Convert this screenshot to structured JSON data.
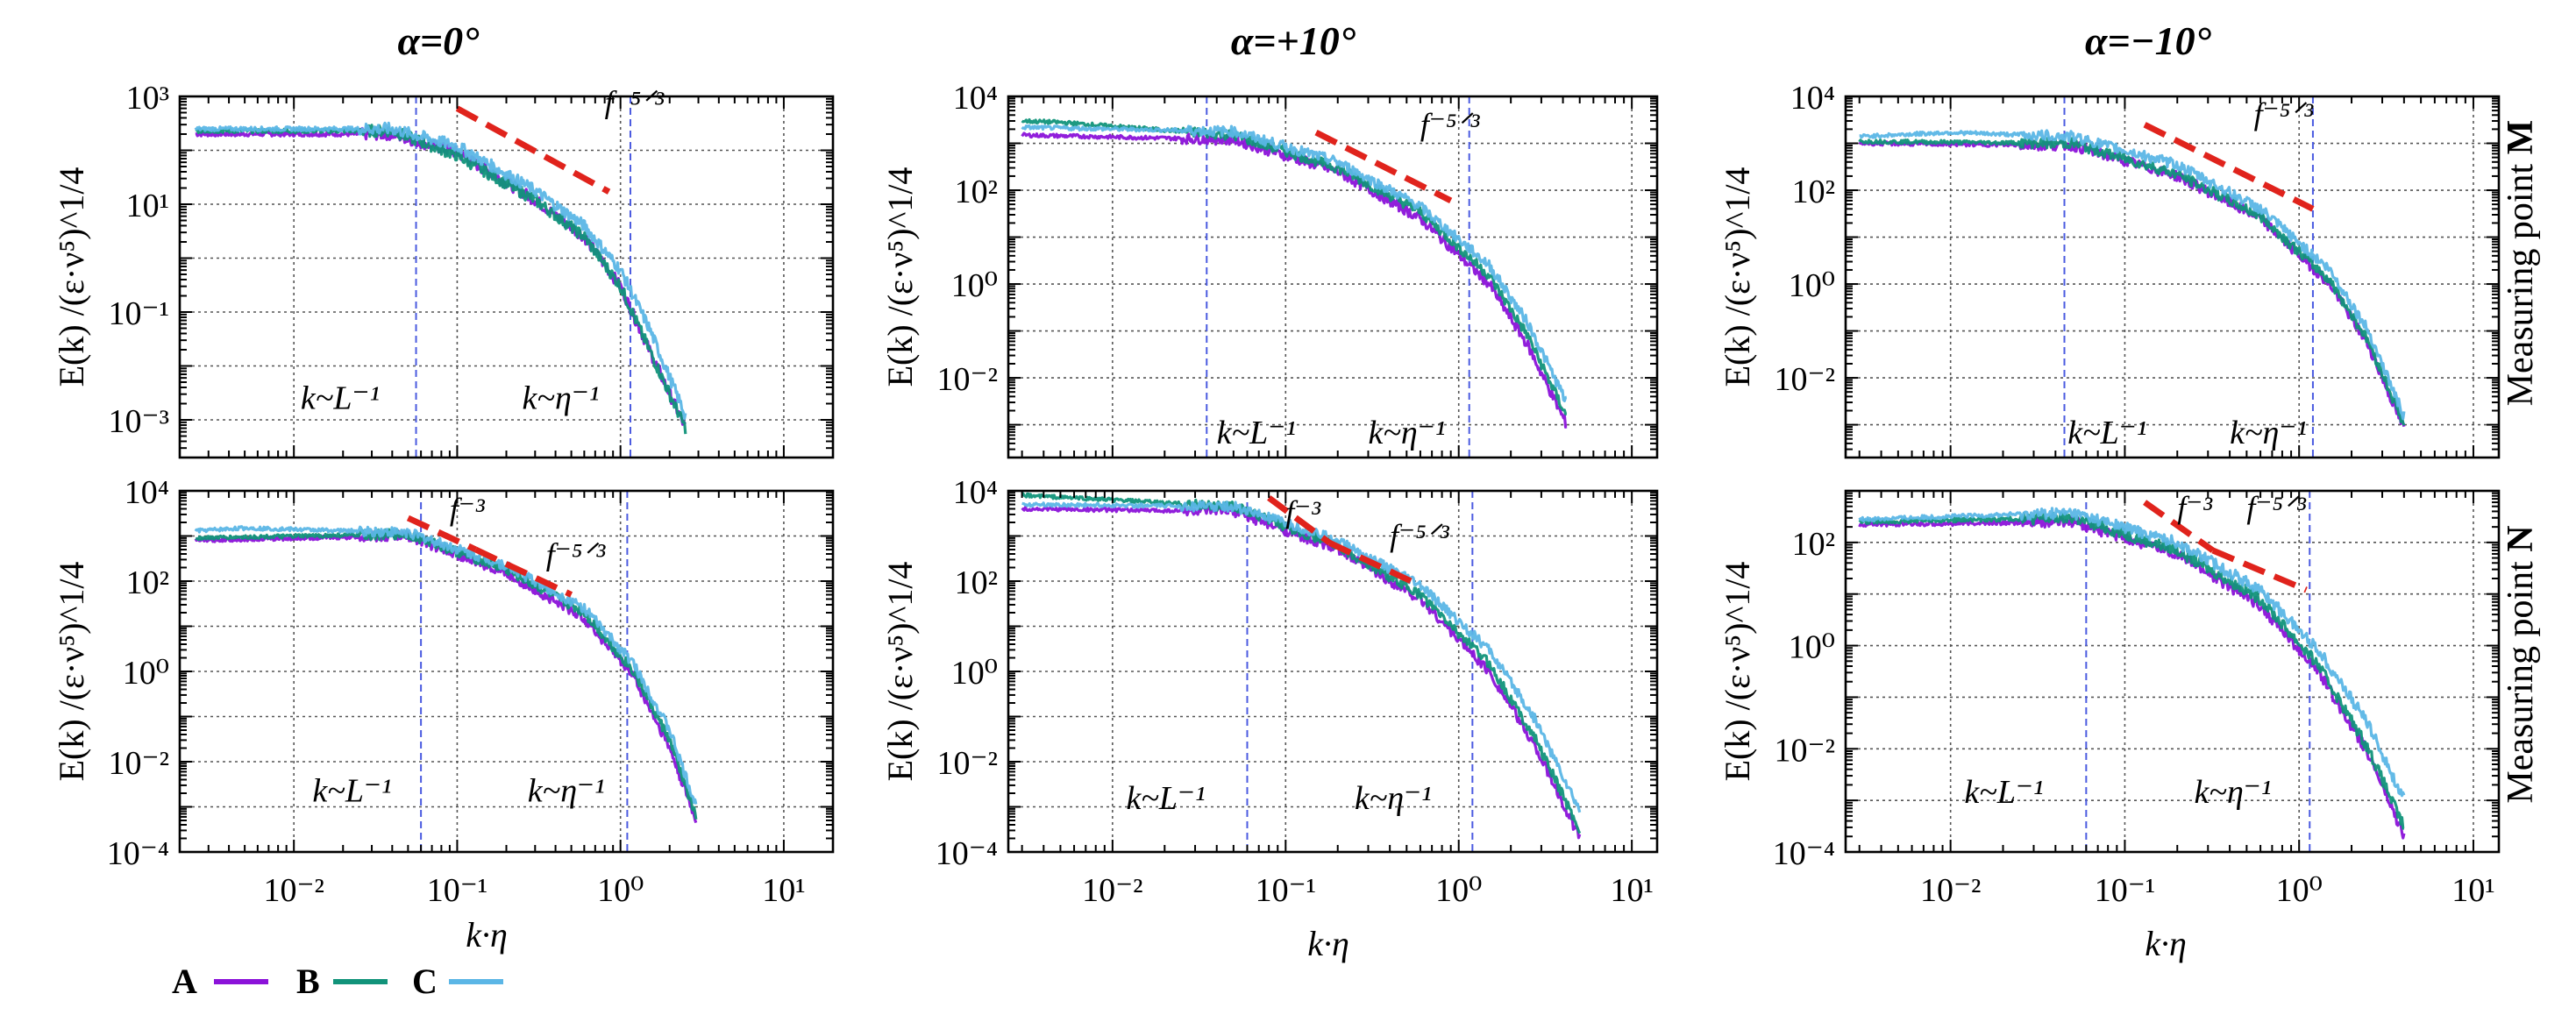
{
  "figure": {
    "column_titles": [
      "α=0°",
      "α=+10°",
      "α=−10°"
    ],
    "row_labels": [
      {
        "prefix": "Measuring point ",
        "bold": "M"
      },
      {
        "prefix": "Measuring point ",
        "bold": "N"
      }
    ],
    "ylabel": "E(k) /(ε·ν⁵)^1/4",
    "xlabel": "k·η",
    "legend": [
      {
        "key": "A",
        "label": "A",
        "color": "#8B12D9"
      },
      {
        "key": "B",
        "label": "B",
        "color": "#11937A"
      },
      {
        "key": "C",
        "label": "C",
        "color": "#5BB6E6"
      }
    ],
    "scale_lines": {
      "kL": "k~L⁻¹",
      "keta": "k~η⁻¹"
    },
    "slope_labels": {
      "s53": "f⁻⁵ᐟ³",
      "s3": "f⁻³"
    }
  },
  "chart_data": [
    {
      "id": "M0",
      "type": "line",
      "title": "α=0°",
      "row": "Measuring point M",
      "xlabel": "",
      "ylabel": "E(k) /(ε·ν⁵)^1/4",
      "xscale": "log",
      "yscale": "log",
      "xlim": [
        0.002,
        20
      ],
      "ylim": [
        0.0002,
        1000
      ],
      "xticks": [
        {
          "v": 0.01,
          "label": ""
        },
        {
          "v": 0.1,
          "label": ""
        },
        {
          "v": 1,
          "label": ""
        },
        {
          "v": 10,
          "label": ""
        }
      ],
      "yticks": [
        {
          "v": 0.001,
          "label": "10⁻³"
        },
        {
          "v": 0.1,
          "label": "10⁻¹"
        },
        {
          "v": 10,
          "label": "10¹"
        },
        {
          "v": 1000,
          "label": "10³"
        }
      ],
      "grid": true,
      "vlines": [
        {
          "x": 0.056,
          "label": "k~L⁻¹",
          "label_x": 0.011,
          "label_y": 0.0016
        },
        {
          "x": 1.15,
          "label": "k~η⁻¹",
          "label_x": 0.25,
          "label_y": 0.0016
        }
      ],
      "ref_lines": [
        {
          "name": "f⁻⁵ᐟ³",
          "x": [
            0.1,
            0.85
          ],
          "y": [
            600,
            17
          ],
          "label_x": 0.8,
          "label_y": 500
        }
      ],
      "series": [
        {
          "name": "A",
          "color": "#8B12D9",
          "x": [
            0.0025,
            0.04,
            0.1,
            0.3,
            0.6,
            1.0,
            1.5,
            2.5
          ],
          "y": [
            200,
            200,
            90,
            12,
            2.5,
            0.3,
            0.02,
            0.0007
          ]
        },
        {
          "name": "B",
          "color": "#11937A",
          "x": [
            0.0025,
            0.04,
            0.1,
            0.3,
            0.6,
            1.0,
            1.5,
            2.5
          ],
          "y": [
            230,
            230,
            80,
            12,
            2.5,
            0.3,
            0.02,
            0.0007
          ]
        },
        {
          "name": "C",
          "color": "#5BB6E6",
          "x": [
            0.0025,
            0.04,
            0.1,
            0.3,
            0.6,
            1.0,
            1.5,
            2.5
          ],
          "y": [
            250,
            250,
            120,
            18,
            4,
            0.6,
            0.05,
            0.0012
          ]
        }
      ]
    },
    {
      "id": "M10",
      "type": "line",
      "title": "α=+10°",
      "row": "Measuring point M",
      "xlabel": "",
      "ylabel": "E(k) /(ε·ν⁵)^1/4",
      "xscale": "log",
      "yscale": "log",
      "xlim": [
        0.0025,
        14
      ],
      "ylim": [
        0.0002,
        10000
      ],
      "xticks": [
        {
          "v": 0.01,
          "label": ""
        },
        {
          "v": 0.1,
          "label": ""
        },
        {
          "v": 1,
          "label": ""
        },
        {
          "v": 10,
          "label": ""
        }
      ],
      "yticks": [
        {
          "v": 0.01,
          "label": "10⁻²"
        },
        {
          "v": 1,
          "label": "10⁰"
        },
        {
          "v": 100,
          "label": "10²"
        },
        {
          "v": 10000,
          "label": "10⁴"
        }
      ],
      "grid": true,
      "vlines": [
        {
          "x": 0.035,
          "label": "k~L⁻¹",
          "label_x": 0.04,
          "label_y": 0.0004
        },
        {
          "x": 1.15,
          "label": "k~η⁻¹",
          "label_x": 0.3,
          "label_y": 0.0004
        }
      ],
      "ref_lines": [
        {
          "name": "f⁻⁵ᐟ³",
          "x": [
            0.15,
            0.9
          ],
          "y": [
            1700,
            60
          ],
          "label_x": 0.6,
          "label_y": 1500
        }
      ],
      "series": [
        {
          "name": "A",
          "color": "#8B12D9",
          "x": [
            0.003,
            0.05,
            0.2,
            0.6,
            1.5,
            2.5,
            4.2
          ],
          "y": [
            1500,
            1200,
            250,
            25,
            1,
            0.05,
            0.001
          ]
        },
        {
          "name": "B",
          "color": "#11937A",
          "x": [
            0.003,
            0.005,
            0.05,
            0.2,
            0.6,
            1.5,
            2.5,
            4.2
          ],
          "y": [
            3000,
            2800,
            1500,
            300,
            35,
            1.5,
            0.08,
            0.0015
          ]
        },
        {
          "name": "C",
          "color": "#5BB6E6",
          "x": [
            0.003,
            0.05,
            0.2,
            0.6,
            1.5,
            2.5,
            4.2
          ],
          "y": [
            2200,
            1800,
            400,
            45,
            2.5,
            0.15,
            0.003
          ]
        }
      ]
    },
    {
      "id": "Mm10",
      "type": "line",
      "title": "α=−10°",
      "row": "Measuring point M",
      "xlabel": "",
      "ylabel": "E(k) /(ε·ν⁵)^1/4",
      "xscale": "log",
      "yscale": "log",
      "xlim": [
        0.0025,
        14
      ],
      "ylim": [
        0.0002,
        10000
      ],
      "xticks": [
        {
          "v": 0.01,
          "label": ""
        },
        {
          "v": 0.1,
          "label": ""
        },
        {
          "v": 1,
          "label": ""
        },
        {
          "v": 10,
          "label": ""
        }
      ],
      "yticks": [
        {
          "v": 0.01,
          "label": "10⁻²"
        },
        {
          "v": 1,
          "label": "10⁰"
        },
        {
          "v": 100,
          "label": "10²"
        },
        {
          "v": 10000,
          "label": "10⁴"
        }
      ],
      "grid": true,
      "vlines": [
        {
          "x": 0.045,
          "label": "k~L⁻¹",
          "label_x": 0.047,
          "label_y": 0.0004
        },
        {
          "x": 1.2,
          "label": "k~η⁻¹",
          "label_x": 0.4,
          "label_y": 0.0004
        }
      ],
      "ref_lines": [
        {
          "name": "f⁻⁵ᐟ³",
          "x": [
            0.13,
            1.2
          ],
          "y": [
            2500,
            40
          ],
          "label_x": 0.55,
          "label_y": 2500
        }
      ],
      "series": [
        {
          "name": "A",
          "color": "#8B12D9",
          "x": [
            0.003,
            0.05,
            0.2,
            0.6,
            1.5,
            2.5,
            4.0
          ],
          "y": [
            1000,
            900,
            200,
            25,
            1,
            0.05,
            0.0008
          ]
        },
        {
          "name": "B",
          "color": "#11937A",
          "x": [
            0.003,
            0.05,
            0.2,
            0.6,
            1.5,
            2.5,
            4.0
          ],
          "y": [
            1100,
            1000,
            220,
            28,
            1.2,
            0.06,
            0.001
          ]
        },
        {
          "name": "C",
          "color": "#5BB6E6",
          "x": [
            0.003,
            0.01,
            0.05,
            0.2,
            0.6,
            1.5,
            2.5,
            4.0
          ],
          "y": [
            1400,
            1700,
            1400,
            350,
            40,
            2,
            0.1,
            0.0015
          ]
        }
      ]
    },
    {
      "id": "N0",
      "type": "line",
      "title": "α=0°",
      "row": "Measuring point N",
      "xlabel": "k·η",
      "ylabel": "E(k) /(ε·ν⁵)^1/4",
      "xscale": "log",
      "yscale": "log",
      "xlim": [
        0.002,
        20
      ],
      "ylim": [
        0.0001,
        10000
      ],
      "xticks": [
        {
          "v": 0.01,
          "label": "10⁻²"
        },
        {
          "v": 0.1,
          "label": "10⁻¹"
        },
        {
          "v": 1,
          "label": "10⁰"
        },
        {
          "v": 10,
          "label": "10¹"
        }
      ],
      "yticks": [
        {
          "v": 0.0001,
          "label": "10⁻⁴"
        },
        {
          "v": 0.01,
          "label": "10⁻²"
        },
        {
          "v": 1,
          "label": "10⁰"
        },
        {
          "v": 100,
          "label": "10²"
        },
        {
          "v": 10000,
          "label": "10⁴"
        }
      ],
      "grid": true,
      "vlines": [
        {
          "x": 0.06,
          "label": "k~L⁻¹",
          "label_x": 0.013,
          "label_y": 0.0013
        },
        {
          "x": 1.1,
          "label": "k~η⁻¹",
          "label_x": 0.27,
          "label_y": 0.0013
        }
      ],
      "ref_lines": [
        {
          "name": "f⁻³",
          "x": [
            0.05,
            0.13
          ],
          "y": [
            2500,
            500
          ],
          "label_x": 0.09,
          "label_y": 2300
        },
        {
          "name": "f⁻⁵ᐟ³",
          "x": [
            0.13,
            0.5
          ],
          "y": [
            500,
            50
          ],
          "label_x": 0.35,
          "label_y": 230
        }
      ],
      "series": [
        {
          "name": "A",
          "color": "#8B12D9",
          "x": [
            0.0025,
            0.05,
            0.2,
            0.6,
            1.2,
            2.0,
            2.9
          ],
          "y": [
            800,
            1000,
            150,
            15,
            0.8,
            0.02,
            0.0005
          ]
        },
        {
          "name": "B",
          "color": "#11937A",
          "x": [
            0.0025,
            0.05,
            0.2,
            0.6,
            1.2,
            2.0,
            2.9
          ],
          "y": [
            900,
            1100,
            180,
            20,
            1,
            0.03,
            0.0006
          ]
        },
        {
          "name": "C",
          "color": "#5BB6E6",
          "x": [
            0.0025,
            0.005,
            0.05,
            0.2,
            0.6,
            1.2,
            2.0,
            2.9
          ],
          "y": [
            1300,
            1500,
            1200,
            220,
            25,
            1.5,
            0.05,
            0.001
          ]
        }
      ]
    },
    {
      "id": "N10",
      "type": "line",
      "title": "α=+10°",
      "row": "Measuring point N",
      "xlabel": "k·η",
      "ylabel": "E(k) /(ε·ν⁵)^1/4",
      "xscale": "log",
      "yscale": "log",
      "xlim": [
        0.0025,
        14
      ],
      "ylim": [
        0.0001,
        10000
      ],
      "xticks": [
        {
          "v": 0.01,
          "label": "10⁻²"
        },
        {
          "v": 0.1,
          "label": "10⁻¹"
        },
        {
          "v": 1,
          "label": "10⁰"
        },
        {
          "v": 10,
          "label": "10¹"
        }
      ],
      "yticks": [
        {
          "v": 0.0001,
          "label": "10⁻⁴"
        },
        {
          "v": 0.01,
          "label": "10⁻²"
        },
        {
          "v": 1,
          "label": "10⁰"
        },
        {
          "v": 100,
          "label": "10²"
        },
        {
          "v": 10000,
          "label": "10⁴"
        }
      ],
      "grid": true,
      "vlines": [
        {
          "x": 0.06,
          "label": "k~L⁻¹",
          "label_x": 0.012,
          "label_y": 0.0009
        },
        {
          "x": 1.2,
          "label": "k~η⁻¹",
          "label_x": 0.25,
          "label_y": 0.0009
        }
      ],
      "ref_lines": [
        {
          "name": "f⁻³",
          "x": [
            0.08,
            0.18
          ],
          "y": [
            7000,
            700
          ],
          "label_x": 0.1,
          "label_y": 2000
        },
        {
          "name": "f⁻⁵ᐟ³",
          "x": [
            0.18,
            0.6
          ],
          "y": [
            700,
            80
          ],
          "label_x": 0.4,
          "label_y": 600
        }
      ],
      "series": [
        {
          "name": "A",
          "color": "#8B12D9",
          "x": [
            0.003,
            0.05,
            0.2,
            0.6,
            1.5,
            2.8,
            5.0
          ],
          "y": [
            4000,
            3500,
            500,
            40,
            1,
            0.02,
            0.0002
          ]
        },
        {
          "name": "B",
          "color": "#11937A",
          "x": [
            0.003,
            0.006,
            0.05,
            0.2,
            0.6,
            1.5,
            2.8,
            5.0
          ],
          "y": [
            8000,
            7000,
            4500,
            600,
            50,
            1.5,
            0.03,
            0.0003
          ]
        },
        {
          "name": "C",
          "color": "#5BB6E6",
          "x": [
            0.003,
            0.05,
            0.2,
            0.6,
            1.5,
            2.8,
            5.0
          ],
          "y": [
            5000,
            4500,
            800,
            80,
            3,
            0.08,
            0.0008
          ]
        }
      ]
    },
    {
      "id": "Nm10",
      "type": "line",
      "title": "α=−10°",
      "row": "Measuring point N",
      "xlabel": "k·η",
      "ylabel": "E(k) /(ε·ν⁵)^1/4",
      "xscale": "log",
      "yscale": "log",
      "xlim": [
        0.0025,
        14
      ],
      "ylim": [
        0.0001,
        1000
      ],
      "xticks": [
        {
          "v": 0.01,
          "label": "10⁻²"
        },
        {
          "v": 0.1,
          "label": "10⁻¹"
        },
        {
          "v": 1,
          "label": "10⁰"
        },
        {
          "v": 10,
          "label": "10¹"
        }
      ],
      "yticks": [
        {
          "v": 0.0001,
          "label": "10⁻⁴"
        },
        {
          "v": 0.01,
          "label": "10⁻²"
        },
        {
          "v": 1,
          "label": "10⁰"
        },
        {
          "v": 100,
          "label": "10²"
        }
      ],
      "grid": true,
      "vlines": [
        {
          "x": 0.06,
          "label": "k~L⁻¹",
          "label_x": 0.012,
          "label_y": 0.0009
        },
        {
          "x": 1.15,
          "label": "k~η⁻¹",
          "label_x": 0.25,
          "label_y": 0.0009
        }
      ],
      "ref_lines": [
        {
          "name": "f⁻³",
          "x": [
            0.13,
            0.32
          ],
          "y": [
            600,
            70
          ],
          "label_x": 0.2,
          "label_y": 300
        },
        {
          "name": "f⁻⁵ᐟ³",
          "x": [
            0.32,
            1.1
          ],
          "y": [
            70,
            12
          ],
          "label_x": 0.5,
          "label_y": 300
        }
      ],
      "series": [
        {
          "name": "A",
          "color": "#8B12D9",
          "x": [
            0.003,
            0.05,
            0.2,
            0.6,
            1.3,
            2.5,
            4.0
          ],
          "y": [
            220,
            250,
            60,
            6,
            0.3,
            0.008,
            0.0002
          ]
        },
        {
          "name": "B",
          "color": "#11937A",
          "x": [
            0.003,
            0.05,
            0.2,
            0.6,
            1.3,
            2.5,
            4.0
          ],
          "y": [
            250,
            300,
            70,
            8,
            0.4,
            0.01,
            0.0003
          ]
        },
        {
          "name": "C",
          "color": "#5BB6E6",
          "x": [
            0.003,
            0.05,
            0.2,
            0.6,
            1.3,
            2.5,
            4.0
          ],
          "y": [
            280,
            380,
            100,
            12,
            0.8,
            0.03,
            0.001
          ]
        }
      ]
    }
  ]
}
